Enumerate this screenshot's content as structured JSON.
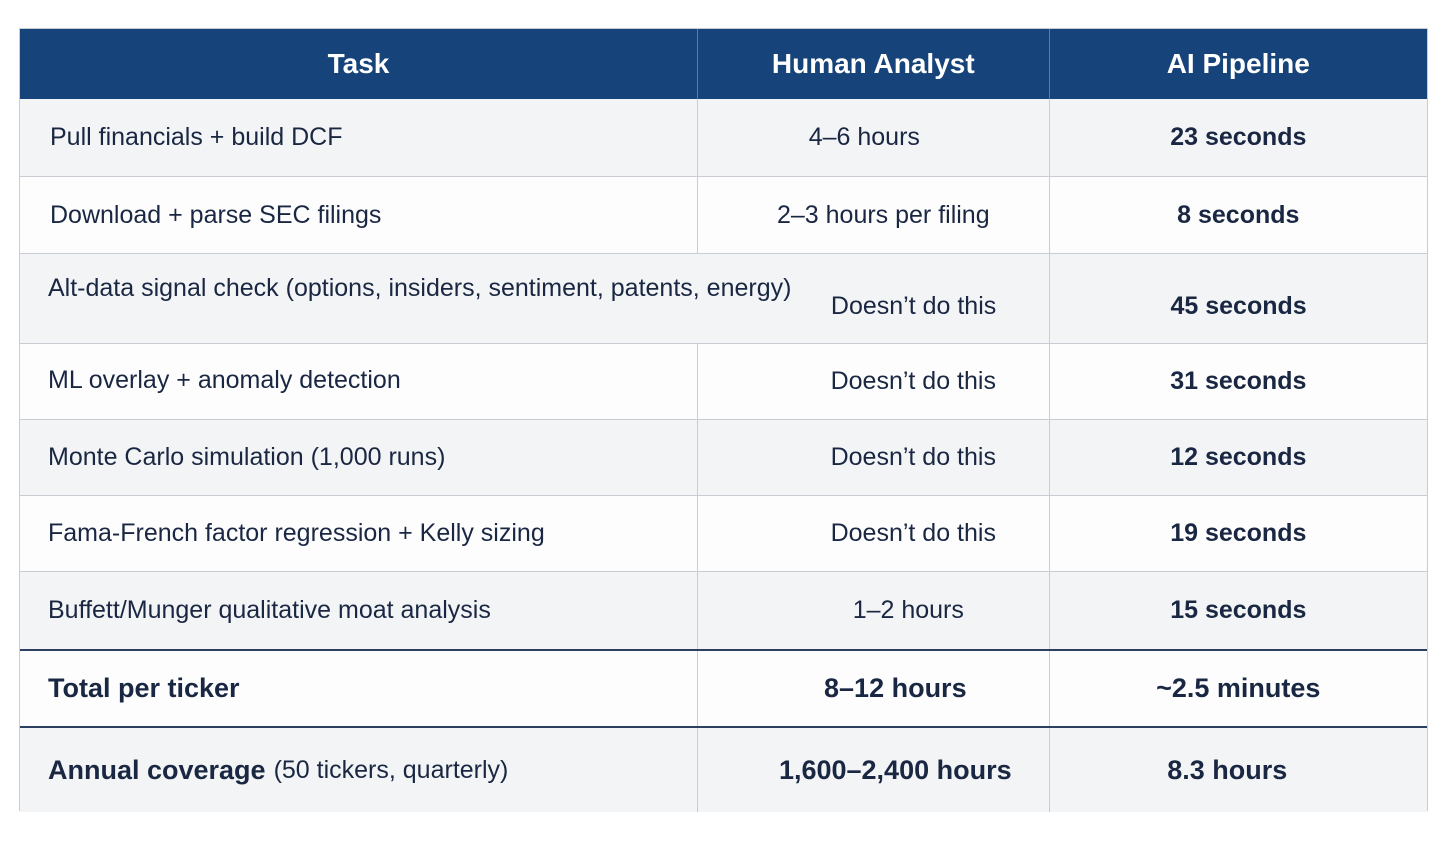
{
  "header": {
    "task": "Task",
    "human": "Human Analyst",
    "ai": "AI Pipeline"
  },
  "rows": [
    {
      "task": "Pull financials + build DCF",
      "human": "4–6 hours",
      "ai": "23 seconds"
    },
    {
      "task": "Download + parse SEC filings",
      "human": "2–3 hours per filing",
      "ai": "8 seconds"
    },
    {
      "task": "Alt-data signal check (options, insiders, sentiment, patents, energy)",
      "human": "Doesn’t do this",
      "ai": "45 seconds"
    },
    {
      "task": "ML overlay + anomaly detection",
      "human": "Doesn’t do this",
      "ai": "31 seconds"
    },
    {
      "task": "Monte Carlo simulation (1,000 runs)",
      "human": "Doesn’t do this",
      "ai": "12 seconds"
    },
    {
      "task": "Fama-French factor regression + Kelly sizing",
      "human": "Doesn’t do this",
      "ai": "19 seconds"
    },
    {
      "task": "Buffett/Munger qualitative moat analysis",
      "human": "1–2 hours",
      "ai": "15 seconds"
    }
  ],
  "total": {
    "task": "Total per ticker",
    "human": "8–12 hours",
    "ai": "~2.5 minutes"
  },
  "annual": {
    "task": "Annual coverage",
    "task_note": "(50 tickers, quarterly)",
    "human": "1,600–2,400 hours",
    "ai": "8.3 hours"
  },
  "colors": {
    "header_bg": "#164379",
    "text": "#1a2742"
  }
}
